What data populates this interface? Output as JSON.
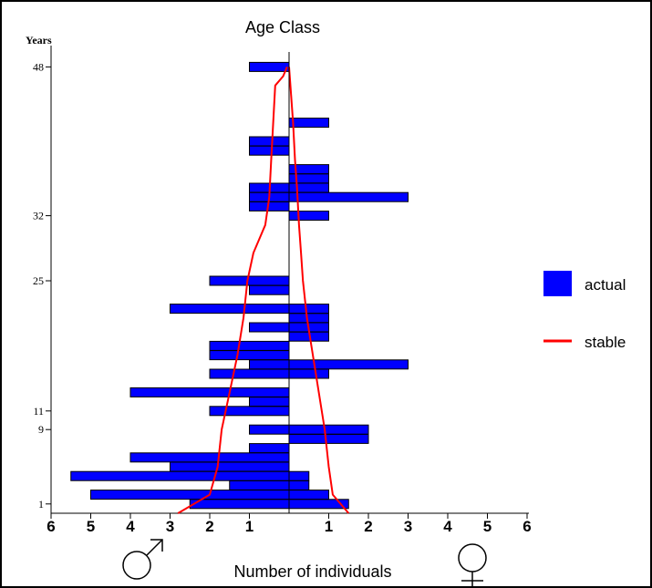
{
  "chart_data": {
    "type": "bar",
    "orientation": "horizontal",
    "layout": "population-pyramid",
    "title": "Age Class",
    "ylabel": "Years",
    "xlabel": "Number of individuals",
    "x_ticks": [
      "6",
      "5",
      "4",
      "3",
      "2",
      "1",
      "1",
      "2",
      "3",
      "4",
      "5",
      "6"
    ],
    "xlim": [
      -6,
      6
    ],
    "y_ticks": [
      1,
      9,
      11,
      25,
      32,
      48
    ],
    "ylim": [
      0,
      50
    ],
    "grid": false,
    "legend_position": "right",
    "colors": {
      "actual": "#0000ff",
      "stable": "#ff0000"
    },
    "legend": [
      {
        "label": "actual",
        "symbol": "box",
        "color": "#0000ff"
      },
      {
        "label": "stable",
        "symbol": "line",
        "color": "#ff0000"
      }
    ],
    "sex_symbols": {
      "left": "male",
      "right": "female"
    },
    "series": [
      {
        "name": "actual",
        "male": [
          {
            "age": 1,
            "value": 2.5
          },
          {
            "age": 2,
            "value": 5.0
          },
          {
            "age": 3,
            "value": 1.5
          },
          {
            "age": 4,
            "value": 5.5
          },
          {
            "age": 5,
            "value": 3.0
          },
          {
            "age": 6,
            "value": 4.0
          },
          {
            "age": 7,
            "value": 1.0
          },
          {
            "age": 9,
            "value": 1.0
          },
          {
            "age": 11,
            "value": 2.0
          },
          {
            "age": 12,
            "value": 1.0
          },
          {
            "age": 13,
            "value": 4.0
          },
          {
            "age": 15,
            "value": 2.0
          },
          {
            "age": 16,
            "value": 1.0
          },
          {
            "age": 17,
            "value": 2.0
          },
          {
            "age": 18,
            "value": 2.0
          },
          {
            "age": 20,
            "value": 1.0
          },
          {
            "age": 22,
            "value": 3.0
          },
          {
            "age": 24,
            "value": 1.0
          },
          {
            "age": 25,
            "value": 2.0
          },
          {
            "age": 33,
            "value": 1.0
          },
          {
            "age": 34,
            "value": 1.0
          },
          {
            "age": 35,
            "value": 1.0
          },
          {
            "age": 39,
            "value": 1.0
          },
          {
            "age": 40,
            "value": 1.0
          },
          {
            "age": 48,
            "value": 1.0
          }
        ],
        "female": [
          {
            "age": 1,
            "value": 1.5
          },
          {
            "age": 2,
            "value": 1.0
          },
          {
            "age": 3,
            "value": 0.5
          },
          {
            "age": 4,
            "value": 0.5
          },
          {
            "age": 8,
            "value": 2.0
          },
          {
            "age": 9,
            "value": 2.0
          },
          {
            "age": 15,
            "value": 1.0
          },
          {
            "age": 16,
            "value": 3.0
          },
          {
            "age": 19,
            "value": 1.0
          },
          {
            "age": 20,
            "value": 1.0
          },
          {
            "age": 21,
            "value": 1.0
          },
          {
            "age": 22,
            "value": 1.0
          },
          {
            "age": 32,
            "value": 1.0
          },
          {
            "age": 34,
            "value": 3.0
          },
          {
            "age": 35,
            "value": 1.0
          },
          {
            "age": 36,
            "value": 1.0
          },
          {
            "age": 37,
            "value": 1.0
          },
          {
            "age": 42,
            "value": 1.0
          }
        ]
      },
      {
        "name": "stable",
        "male": [
          {
            "age": 0,
            "value": 2.8
          },
          {
            "age": 2,
            "value": 2.0
          },
          {
            "age": 5,
            "value": 1.8
          },
          {
            "age": 9,
            "value": 1.7
          },
          {
            "age": 13,
            "value": 1.5
          },
          {
            "age": 17,
            "value": 1.3
          },
          {
            "age": 21,
            "value": 1.15
          },
          {
            "age": 25,
            "value": 1.05
          },
          {
            "age": 28,
            "value": 0.9
          },
          {
            "age": 31,
            "value": 0.6
          },
          {
            "age": 34,
            "value": 0.5
          },
          {
            "age": 38,
            "value": 0.45
          },
          {
            "age": 42,
            "value": 0.4
          },
          {
            "age": 46,
            "value": 0.35
          },
          {
            "age": 47,
            "value": 0.15
          },
          {
            "age": 48,
            "value": 0.05
          }
        ],
        "female": [
          {
            "age": 0,
            "value": 1.5
          },
          {
            "age": 2,
            "value": 1.1
          },
          {
            "age": 5,
            "value": 1.0
          },
          {
            "age": 9,
            "value": 0.9
          },
          {
            "age": 13,
            "value": 0.75
          },
          {
            "age": 17,
            "value": 0.6
          },
          {
            "age": 21,
            "value": 0.45
          },
          {
            "age": 25,
            "value": 0.35
          },
          {
            "age": 28,
            "value": 0.3
          },
          {
            "age": 31,
            "value": 0.25
          },
          {
            "age": 35,
            "value": 0.2
          },
          {
            "age": 38,
            "value": 0.15
          },
          {
            "age": 42,
            "value": 0.1
          },
          {
            "age": 45,
            "value": 0.05
          },
          {
            "age": 48,
            "value": 0.0
          }
        ]
      }
    ]
  }
}
